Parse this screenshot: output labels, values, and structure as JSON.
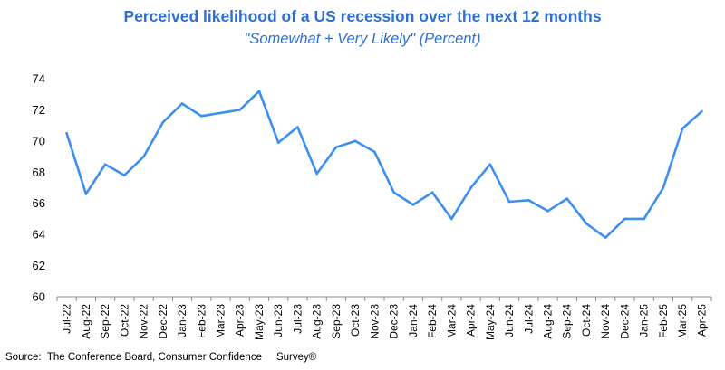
{
  "chart_data": {
    "type": "line",
    "title": "Perceived likelihood of a US recession over the next 12 months",
    "subtitle": "\"Somewhat + Very Likely\" (Percent)",
    "xlabel": "",
    "ylabel": "",
    "ylim": [
      60,
      74
    ],
    "yticks": [
      60,
      62,
      64,
      66,
      68,
      70,
      72,
      74
    ],
    "grid": false,
    "legend": "none",
    "line_color": "#3D8FEF",
    "categories": [
      "Jul-22",
      "Aug-22",
      "Sep-22",
      "Oct-22",
      "Nov-22",
      "Dec-22",
      "Jan-23",
      "Feb-23",
      "Mar-23",
      "Apr-23",
      "May-23",
      "Jun-23",
      "Jul-23",
      "Aug-23",
      "Sep-23",
      "Oct-23",
      "Nov-23",
      "Dec-23",
      "Jan-24",
      "Feb-24",
      "Mar-24",
      "Apr-24",
      "May-24",
      "Jun-24",
      "Jul-24",
      "Aug-24",
      "Sep-24",
      "Oct-24",
      "Nov-24",
      "Dec-24",
      "Jan-25",
      "Feb-25",
      "Mar-25",
      "Apr-25"
    ],
    "values": [
      70.5,
      66.6,
      68.5,
      67.8,
      69.0,
      71.2,
      72.4,
      71.6,
      71.8,
      72.0,
      73.2,
      69.9,
      70.9,
      67.9,
      69.6,
      70.0,
      69.3,
      66.7,
      65.9,
      66.7,
      65.0,
      67.0,
      68.5,
      66.1,
      66.2,
      65.5,
      66.3,
      64.7,
      63.8,
      65.0,
      65.0,
      67.0,
      70.8,
      71.9
    ]
  },
  "source": "Source:  The Conference Board, Consumer Confidence     Survey®"
}
